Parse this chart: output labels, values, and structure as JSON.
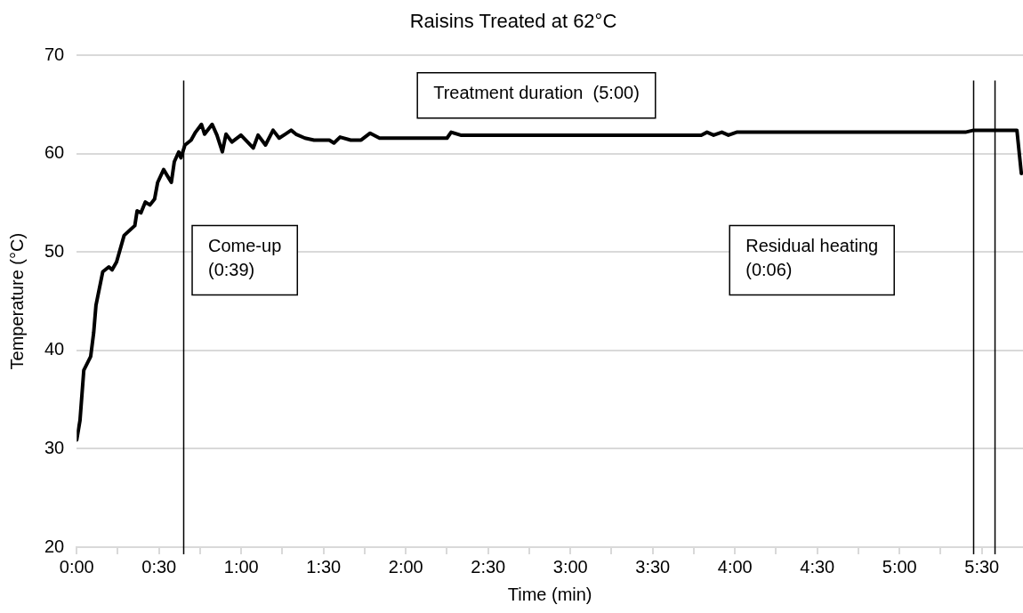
{
  "chart_data": {
    "type": "line",
    "title": "Raisins Treated at 62°C",
    "xlabel": "Time (min)",
    "ylabel": "Temperature (°C)",
    "x": [
      0,
      0.02,
      0.043,
      0.085,
      0.103,
      0.117,
      0.158,
      0.195,
      0.215,
      0.242,
      0.288,
      0.353,
      0.367,
      0.39,
      0.417,
      0.445,
      0.473,
      0.492,
      0.528,
      0.575,
      0.593,
      0.62,
      0.633,
      0.658,
      0.695,
      0.722,
      0.758,
      0.777,
      0.823,
      0.852,
      0.885,
      0.907,
      0.943,
      0.998,
      1.073,
      1.102,
      1.147,
      1.193,
      1.23,
      1.267,
      1.303,
      1.332,
      1.387,
      1.442,
      1.535,
      1.563,
      1.6,
      1.665,
      1.728,
      1.783,
      1.84,
      2.25,
      2.275,
      2.333,
      3.795,
      3.83,
      3.87,
      3.92,
      3.96,
      4.01,
      4.143,
      5.4,
      5.45,
      5.713,
      5.74
    ],
    "series": [
      {
        "color": "#000000",
        "values": [
          30.9,
          32.9,
          38.0,
          39.4,
          41.8,
          44.6,
          48.0,
          48.5,
          48.2,
          49.0,
          51.7,
          52.7,
          54.2,
          54.0,
          55.1,
          54.8,
          55.4,
          57.1,
          58.4,
          57.1,
          59.2,
          60.2,
          59.6,
          60.9,
          61.4,
          62.2,
          63.0,
          62.0,
          63.0,
          61.9,
          60.2,
          62.0,
          61.2,
          61.9,
          60.6,
          61.9,
          60.9,
          62.4,
          61.6,
          62.0,
          62.4,
          62.0,
          61.6,
          61.4,
          61.4,
          61.1,
          61.7,
          61.4,
          61.4,
          62.1,
          61.6,
          61.6,
          62.2,
          61.9,
          61.9,
          62.2,
          61.9,
          62.2,
          61.9,
          62.2,
          62.2,
          62.2,
          62.4,
          62.4,
          58
        ]
      }
    ],
    "xlim": [
      0,
      5.75
    ],
    "xticks": [
      {
        "value": 0,
        "label": "0:00"
      },
      {
        "value": 0.25,
        "label": null
      },
      {
        "value": 0.5,
        "label": "0:30"
      },
      {
        "value": 0.75,
        "label": null
      },
      {
        "value": 1,
        "label": "1:00"
      },
      {
        "value": 1.25,
        "label": null
      },
      {
        "value": 1.5,
        "label": "1:30"
      },
      {
        "value": 1.75,
        "label": null
      },
      {
        "value": 2,
        "label": "2:00"
      },
      {
        "value": 2.25,
        "label": null
      },
      {
        "value": 2.5,
        "label": "2:30"
      },
      {
        "value": 2.75,
        "label": null
      },
      {
        "value": 3,
        "label": "3:00"
      },
      {
        "value": 3.25,
        "label": null
      },
      {
        "value": 3.5,
        "label": "3:30"
      },
      {
        "value": 3.75,
        "label": null
      },
      {
        "value": 4,
        "label": "4:00"
      },
      {
        "value": 4.25,
        "label": null
      },
      {
        "value": 4.5,
        "label": "4:30"
      },
      {
        "value": 4.75,
        "label": null
      },
      {
        "value": 5,
        "label": "5:00"
      },
      {
        "value": 5.25,
        "label": null
      },
      {
        "value": 5.5,
        "label": "5:30"
      }
    ],
    "ylim": [
      20,
      70
    ],
    "yticks": [
      20,
      30,
      40,
      50,
      60,
      70
    ],
    "grid": "y",
    "marker": "none",
    "line_style": "solid",
    "ref_lines": [
      {
        "axis": "x",
        "value": 0.65,
        "color": "#000000"
      },
      {
        "axis": "x",
        "value": 5.45,
        "color": "#000000"
      },
      {
        "axis": "x",
        "value": 5.58,
        "color": "#000000"
      }
    ],
    "annotations": [
      "Come-up\n(0:39)",
      "Treatment duration  (5:00)",
      "Residual heating\n(0:06)"
    ]
  }
}
